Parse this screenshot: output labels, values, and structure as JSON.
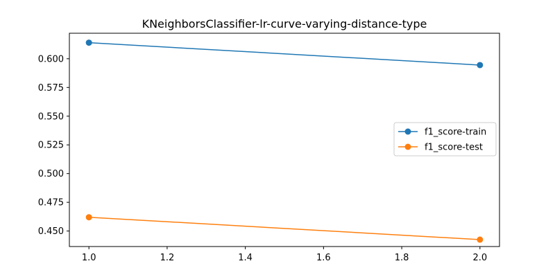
{
  "chart_data": {
    "type": "line",
    "title": "KNeighborsClassifier-lr-curve-varying-distance-type",
    "xlabel": "",
    "ylabel": "",
    "x": [
      1.0,
      2.0
    ],
    "series": [
      {
        "name": "f1_score-train",
        "color": "#1f77b4",
        "values": [
          0.614,
          0.5945
        ]
      },
      {
        "name": "f1_score-test",
        "color": "#ff7f0e",
        "values": [
          0.462,
          0.4425
        ]
      }
    ],
    "xlim": [
      0.95,
      2.05
    ],
    "ylim": [
      0.4365,
      0.6222
    ],
    "xticks": [
      1.0,
      1.2,
      1.4,
      1.6,
      1.8,
      2.0
    ],
    "xtick_labels": [
      "1.0",
      "1.2",
      "1.4",
      "1.6",
      "1.8",
      "2.0"
    ],
    "yticks": [
      0.45,
      0.475,
      0.5,
      0.525,
      0.55,
      0.575,
      0.6
    ],
    "ytick_labels": [
      "0.450",
      "0.475",
      "0.500",
      "0.525",
      "0.550",
      "0.575",
      "0.600"
    ],
    "grid": false,
    "legend_position": "center-right"
  }
}
